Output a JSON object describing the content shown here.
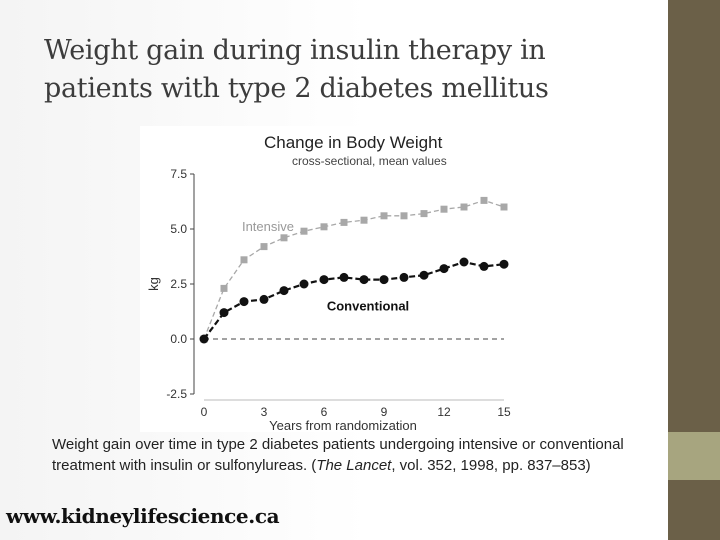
{
  "slide": {
    "title_line1": "Weight gain during insulin therapy in",
    "title_line2": "patients with type 2 diabetes mellitus",
    "caption_before": "Weight gain over time in type 2 diabetes patients undergoing intensive or conventional treatment with insulin or sulfonylureas. (",
    "caption_source": "The Lancet",
    "caption_after": ", vol. 352, 1998, pp. 837–853)",
    "watermark": "www.kidneylifescience.ca"
  },
  "colors": {
    "sidebar_dark": "#6b6048",
    "sidebar_light": "#a7a57f",
    "intensive": "#a8a8a8",
    "conventional": "#111111"
  },
  "chart_data": {
    "type": "line",
    "title": "Change in Body Weight",
    "subtitle": "cross-sectional, mean values",
    "xlabel": "Years from randomization",
    "ylabel": "kg",
    "xlim": [
      0,
      15
    ],
    "ylim": [
      -2.5,
      7.5
    ],
    "xticks": [
      "0",
      "3",
      "6",
      "9",
      "12",
      "15"
    ],
    "yticks": [
      "-2.5",
      "0.0",
      "2.5",
      "5.0",
      "7.5"
    ],
    "reference_line_y": 0,
    "grid": false,
    "legend": "inline labels",
    "series": [
      {
        "name": "Intensive",
        "color": "#a8a8a8",
        "x": [
          0,
          1,
          2,
          3,
          4,
          5,
          6,
          7,
          8,
          9,
          10,
          11,
          12,
          13,
          14,
          15
        ],
        "values": [
          0.0,
          2.3,
          3.6,
          4.2,
          4.6,
          4.9,
          5.1,
          5.3,
          5.4,
          5.6,
          5.6,
          5.7,
          5.9,
          6.0,
          6.3,
          6.0
        ]
      },
      {
        "name": "Conventional",
        "color": "#111111",
        "x": [
          0,
          1,
          2,
          3,
          4,
          5,
          6,
          7,
          8,
          9,
          10,
          11,
          12,
          13,
          14,
          15
        ],
        "values": [
          0.0,
          1.2,
          1.7,
          1.8,
          2.2,
          2.5,
          2.7,
          2.8,
          2.7,
          2.7,
          2.8,
          2.9,
          3.2,
          3.5,
          3.3,
          3.4
        ]
      }
    ]
  }
}
